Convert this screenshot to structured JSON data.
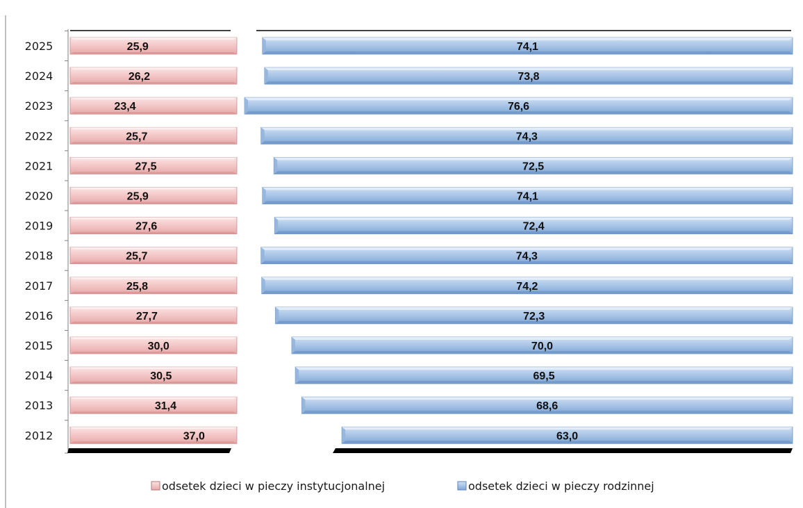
{
  "chart_data": {
    "type": "bar",
    "orientation": "horizontal",
    "stacked": true,
    "title": "",
    "xlabel": "",
    "ylabel": "",
    "categories": [
      "2025",
      "2024",
      "2023",
      "2022",
      "2021",
      "2020",
      "2019",
      "2018",
      "2017",
      "2016",
      "2015",
      "2014",
      "2013",
      "2012"
    ],
    "series": [
      {
        "name": "odsetek dzieci w pieczy instytucjonalnej",
        "color": "#f2c4c4",
        "values": [
          25.9,
          26.2,
          23.4,
          25.7,
          27.5,
          25.9,
          27.6,
          25.7,
          25.8,
          27.7,
          30.0,
          30.5,
          31.4,
          37.0
        ],
        "labels": [
          "25,9",
          "26,2",
          "23,4",
          "25,7",
          "27,5",
          "25,9",
          "27,6",
          "25,7",
          "25,8",
          "27,7",
          "30,0",
          "30,5",
          "31,4",
          "37,0"
        ]
      },
      {
        "name": "odsetek dzieci w pieczy rodzinnej",
        "color": "#a9c6e8",
        "values": [
          74.1,
          73.8,
          76.6,
          74.3,
          72.5,
          74.1,
          72.4,
          74.3,
          74.2,
          72.3,
          70.0,
          69.5,
          68.6,
          63.0
        ],
        "labels": [
          "74,1",
          "73,8",
          "76,6",
          "74,3",
          "72,5",
          "74,1",
          "72,4",
          "74,3",
          "74,2",
          "72,3",
          "70,0",
          "69,5",
          "68,6",
          "63,0"
        ]
      }
    ],
    "xlim": [
      0,
      100
    ],
    "grid": false,
    "legend_position": "bottom"
  }
}
